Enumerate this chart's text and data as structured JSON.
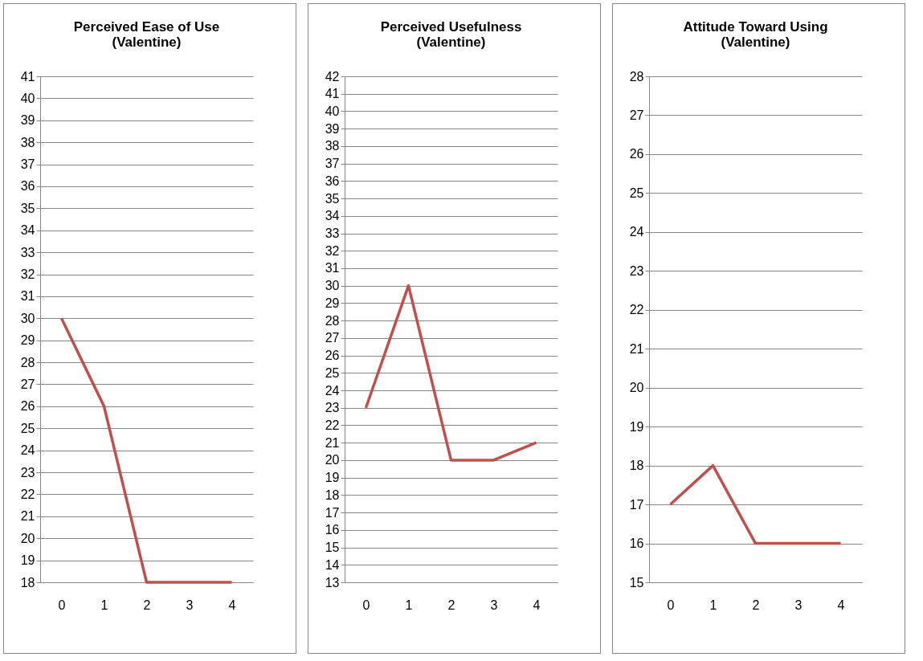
{
  "chart_data": [
    {
      "type": "line",
      "title": "Perceived Ease of Use\n(Valentine)",
      "categories": [
        "0",
        "1",
        "2",
        "3",
        "4"
      ],
      "values": [
        30,
        26,
        18,
        18,
        18
      ],
      "color": "#c0504d",
      "ylim": [
        18,
        41
      ],
      "yticks": [
        18,
        19,
        20,
        21,
        22,
        23,
        24,
        25,
        26,
        27,
        28,
        29,
        30,
        31,
        32,
        33,
        34,
        35,
        36,
        37,
        38,
        39,
        40,
        41
      ],
      "grid": "y",
      "marker": "none"
    },
    {
      "type": "line",
      "title": "Perceived Usefulness\n(Valentine)",
      "categories": [
        "0",
        "1",
        "2",
        "3",
        "4"
      ],
      "values": [
        23,
        30,
        20,
        20,
        21
      ],
      "color": "#c0504d",
      "ylim": [
        13,
        42
      ],
      "yticks": [
        13,
        14,
        15,
        16,
        17,
        18,
        19,
        20,
        21,
        22,
        23,
        24,
        25,
        26,
        27,
        28,
        29,
        30,
        31,
        32,
        33,
        34,
        35,
        36,
        37,
        38,
        39,
        40,
        41,
        42
      ],
      "grid": "y",
      "marker": "none"
    },
    {
      "type": "line",
      "title": "Attitude Toward Using\n(Valentine)",
      "categories": [
        "0",
        "1",
        "2",
        "3",
        "4"
      ],
      "values": [
        17,
        18,
        16,
        16,
        16
      ],
      "color": "#c0504d",
      "ylim": [
        15,
        28
      ],
      "yticks": [
        15,
        16,
        17,
        18,
        19,
        20,
        21,
        22,
        23,
        24,
        25,
        26,
        27,
        28
      ],
      "grid": "y",
      "marker": "none"
    }
  ]
}
